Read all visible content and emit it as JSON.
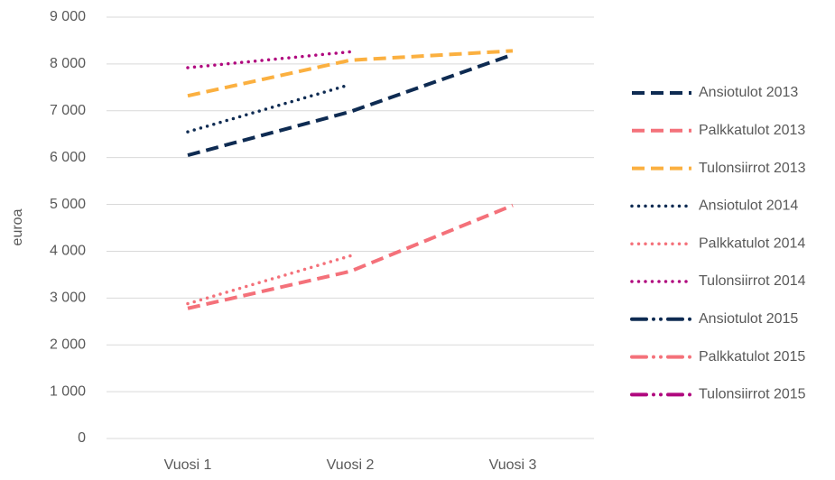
{
  "chart_data": {
    "type": "line",
    "y_label": "euroa",
    "categories": [
      "Vuosi 1",
      "Vuosi 2",
      "Vuosi 3"
    ],
    "series": [
      {
        "name": "Ansiotulot 2013",
        "color": "#0e2b52",
        "style": "dashed",
        "values": [
          6050,
          6980,
          8200
        ]
      },
      {
        "name": "Palkkatulot 2013",
        "color": "#f4717a",
        "style": "dashed",
        "values": [
          2780,
          3570,
          4980
        ]
      },
      {
        "name": "Tulonsiirrot 2013",
        "color": "#fbb040",
        "style": "dashed",
        "values": [
          7320,
          8080,
          8280
        ]
      },
      {
        "name": "Ansiotulot 2014",
        "color": "#0e2b52",
        "style": "dotted",
        "values": [
          6550,
          7560,
          null
        ]
      },
      {
        "name": "Palkkatulot 2014",
        "color": "#f4717a",
        "style": "dotted",
        "values": [
          2880,
          3900,
          null
        ]
      },
      {
        "name": "Tulonsiirrot 2014",
        "color": "#b0087e",
        "style": "dotted",
        "values": [
          7920,
          8260,
          null
        ]
      },
      {
        "name": "Ansiotulot 2015",
        "color": "#0e2b52",
        "style": "dashdot",
        "values": [
          null,
          null,
          null
        ]
      },
      {
        "name": "Palkkatulot 2015",
        "color": "#f4717a",
        "style": "dashdot",
        "values": [
          null,
          null,
          null
        ]
      },
      {
        "name": "Tulonsiirrot 2015",
        "color": "#b0087e",
        "style": "dashdot",
        "values": [
          null,
          null,
          null
        ]
      }
    ],
    "ylim": [
      0,
      9000
    ],
    "yticks": [
      0,
      {
        "value": 1000,
        "label": "1 000"
      },
      {
        "value": 2000,
        "label": "2 000"
      },
      {
        "value": 3000,
        "label": "3 000"
      },
      {
        "value": 4000,
        "label": "4 000"
      },
      {
        "value": 5000,
        "label": "5 000"
      },
      {
        "value": 6000,
        "label": "6 000"
      },
      {
        "value": 7000,
        "label": "7 000"
      },
      {
        "value": 8000,
        "label": "8 000"
      },
      {
        "value": 9000,
        "label": "9 000"
      }
    ],
    "grid": true,
    "legend": "right"
  }
}
